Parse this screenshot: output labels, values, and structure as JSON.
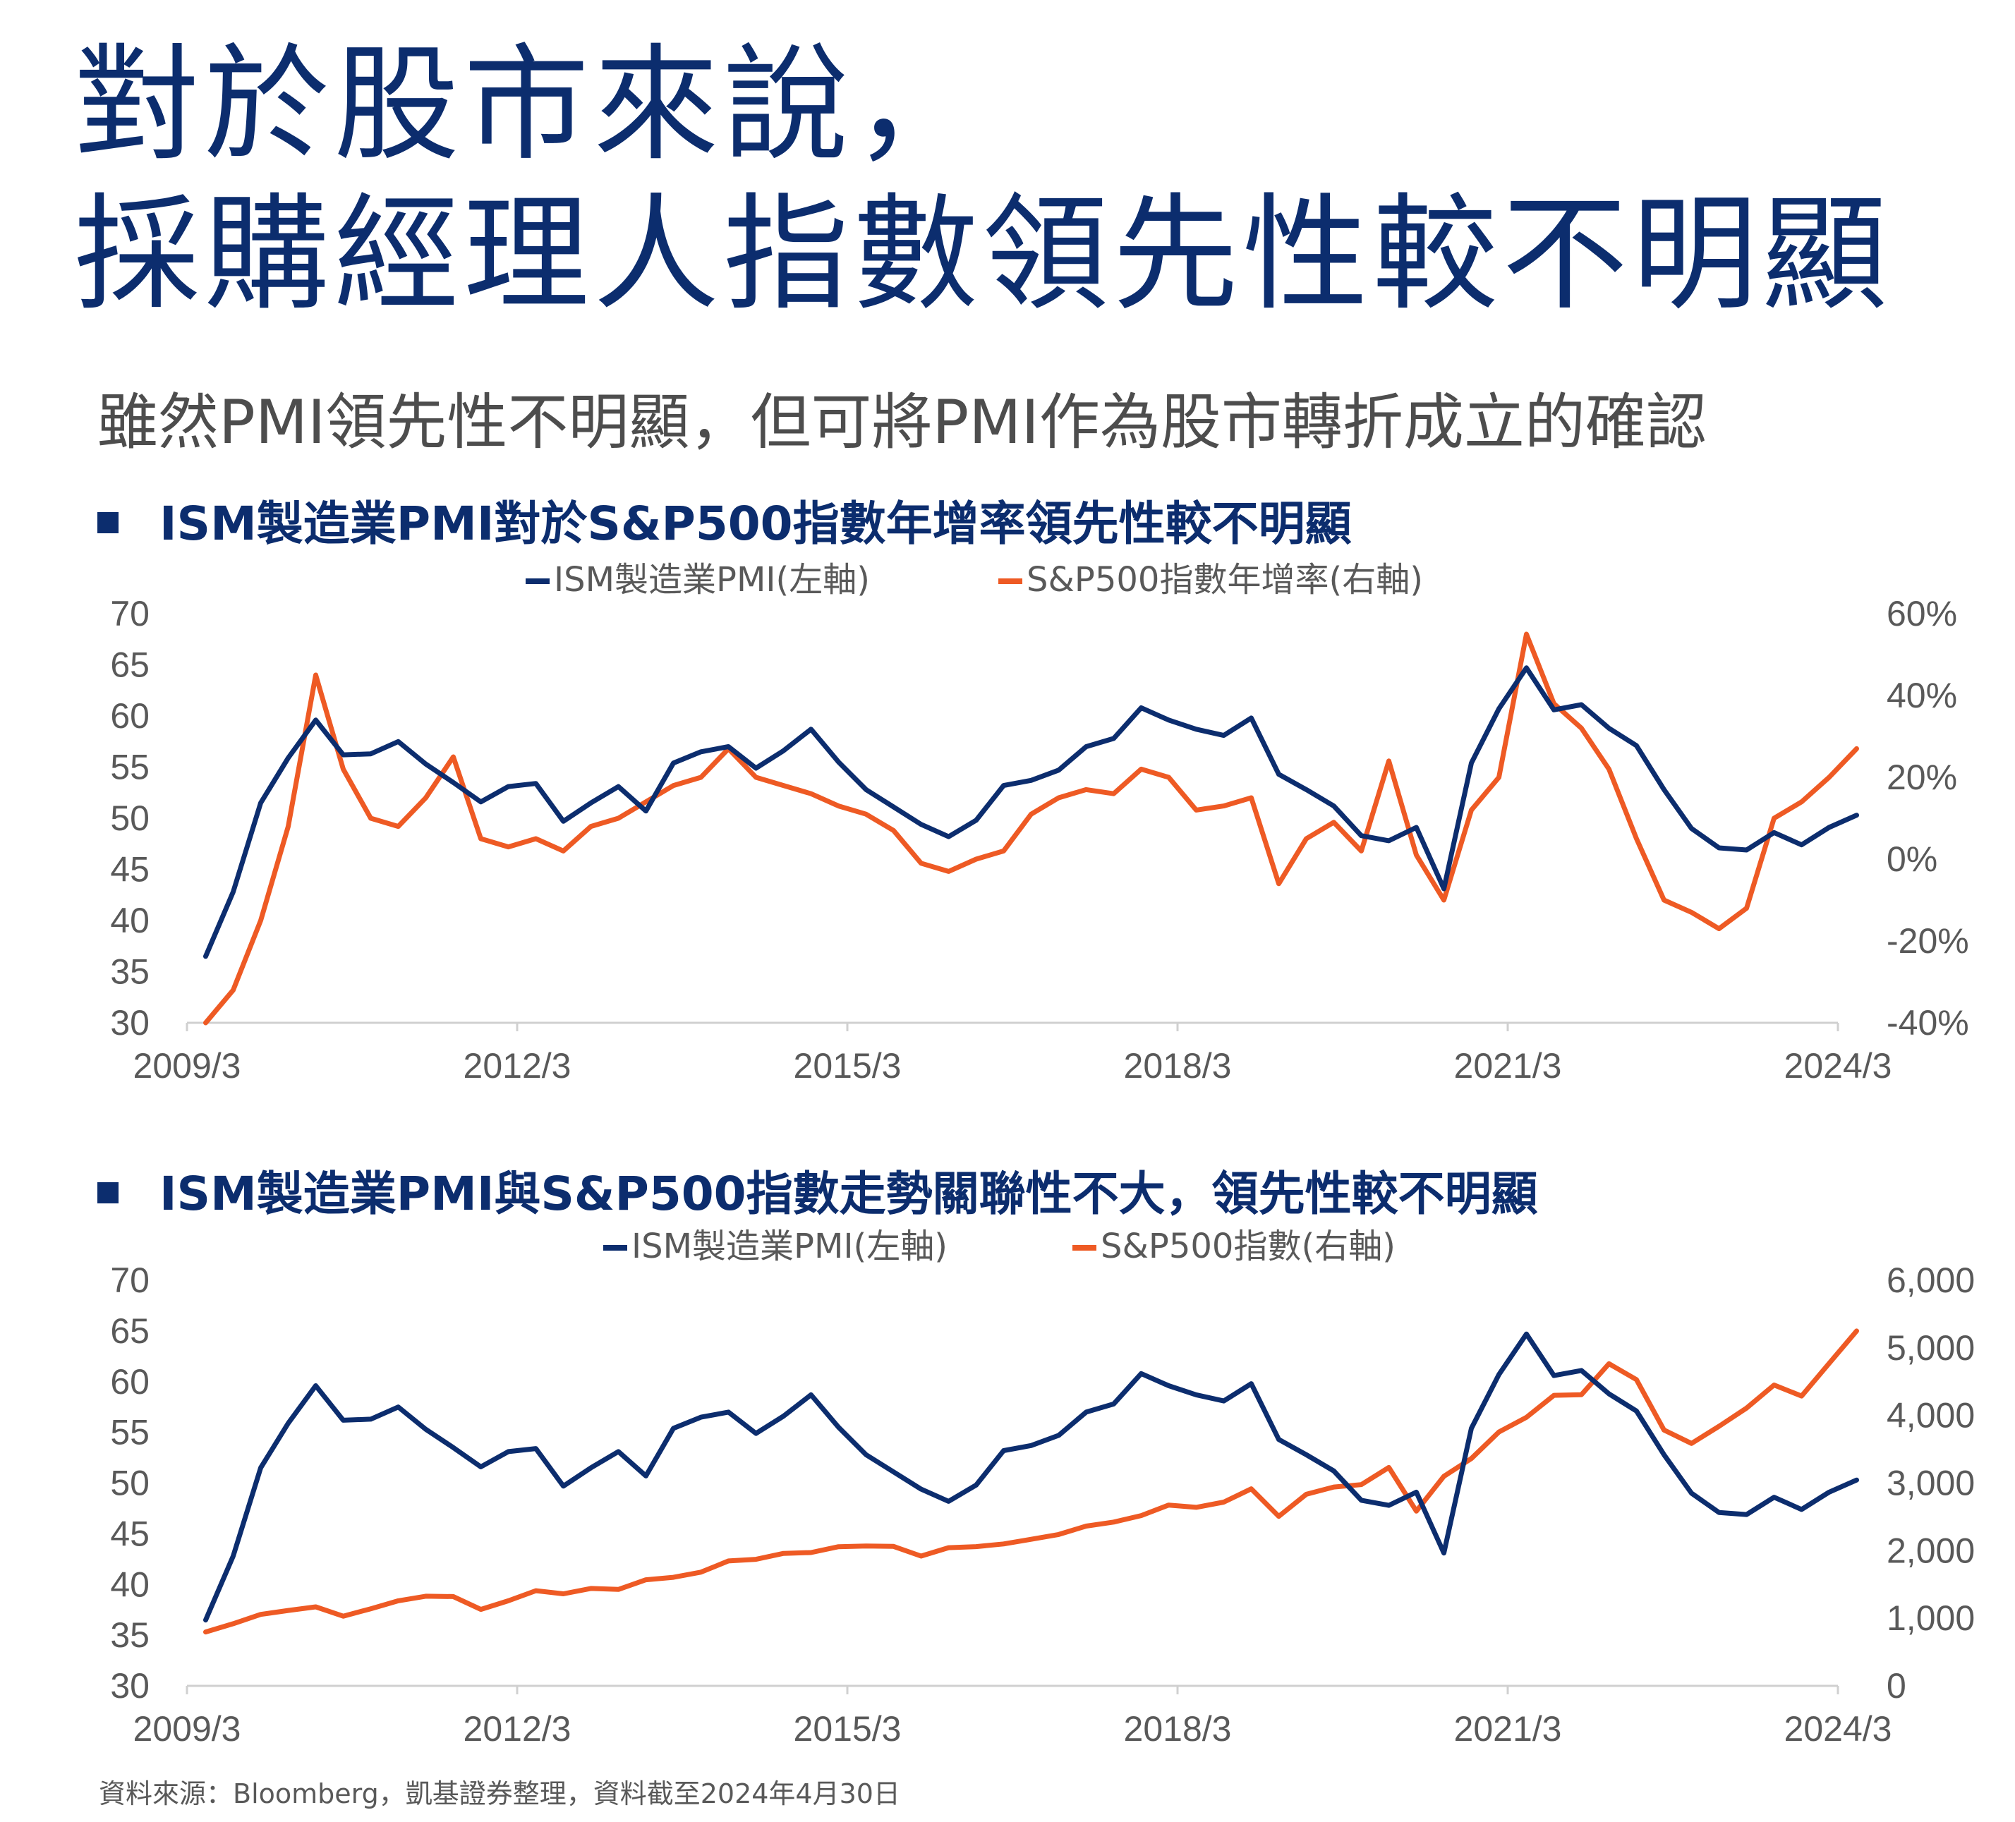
{
  "title_line1": "對於股市來說，",
  "title_line2": "採購經理人指數領先性較不明顯",
  "subtitle": "雖然PMI領先性不明顯，但可將PMI作為股市轉折成立的確認",
  "source": "資料來源：Bloomberg，凱基證券整理，資料截至2024年4月30日",
  "colors": {
    "pmi": "#0c2d6e",
    "sp": "#ee5a24",
    "title": "#0c2d6e",
    "axis_text": "#595959"
  },
  "x_labels": [
    "2009/3",
    "2012/3",
    "2015/3",
    "2018/3",
    "2021/3",
    "2024/3"
  ],
  "chart_data": [
    {
      "type": "line",
      "title": "ISM製造業PMI對於S&P500指數年增率領先性較不明顯",
      "legend": [
        "ISM製造業PMI(左軸)",
        "S&P500指數年增率(右軸)"
      ],
      "x_range": [
        "2009-03",
        "2024-03"
      ],
      "left_ticks": [
        "70",
        "65",
        "60",
        "55",
        "50",
        "45",
        "40",
        "35",
        "30"
      ],
      "right_ticks": [
        "60%",
        "40%",
        "20%",
        "0%",
        "-20%",
        "-40%"
      ],
      "ylim_left": [
        30,
        70
      ],
      "ylim_right": [
        -40,
        60
      ],
      "series": [
        {
          "name": "ISM製造業PMI(左軸)",
          "axis": "left",
          "points": [
            [
              2009.17,
              36.5
            ],
            [
              2009.42,
              42.8
            ],
            [
              2009.67,
              51.5
            ],
            [
              2009.92,
              55.9
            ],
            [
              2010.17,
              59.6
            ],
            [
              2010.42,
              56.2
            ],
            [
              2010.67,
              56.3
            ],
            [
              2010.92,
              57.5
            ],
            [
              2011.17,
              55.3
            ],
            [
              2011.42,
              53.5
            ],
            [
              2011.67,
              51.6
            ],
            [
              2011.92,
              53.1
            ],
            [
              2012.17,
              53.4
            ],
            [
              2012.42,
              49.7
            ],
            [
              2012.67,
              51.5
            ],
            [
              2012.92,
              53.1
            ],
            [
              2013.17,
              50.7
            ],
            [
              2013.42,
              55.4
            ],
            [
              2013.67,
              56.5
            ],
            [
              2013.92,
              57.0
            ],
            [
              2014.17,
              54.9
            ],
            [
              2014.42,
              56.6
            ],
            [
              2014.67,
              58.7
            ],
            [
              2014.92,
              55.5
            ],
            [
              2015.17,
              52.8
            ],
            [
              2015.42,
              51.1
            ],
            [
              2015.67,
              49.4
            ],
            [
              2015.92,
              48.2
            ],
            [
              2016.17,
              49.8
            ],
            [
              2016.42,
              53.2
            ],
            [
              2016.67,
              53.7
            ],
            [
              2016.92,
              54.7
            ],
            [
              2017.17,
              57.0
            ],
            [
              2017.42,
              57.8
            ],
            [
              2017.67,
              60.8
            ],
            [
              2017.92,
              59.6
            ],
            [
              2018.17,
              58.7
            ],
            [
              2018.42,
              58.1
            ],
            [
              2018.67,
              59.8
            ],
            [
              2018.92,
              54.3
            ],
            [
              2019.17,
              52.8
            ],
            [
              2019.42,
              51.2
            ],
            [
              2019.67,
              48.3
            ],
            [
              2019.92,
              47.8
            ],
            [
              2020.17,
              49.1
            ],
            [
              2020.42,
              43.1
            ],
            [
              2020.67,
              55.4
            ],
            [
              2020.92,
              60.7
            ],
            [
              2021.17,
              64.7
            ],
            [
              2021.42,
              60.6
            ],
            [
              2021.67,
              61.1
            ],
            [
              2021.92,
              58.8
            ],
            [
              2022.17,
              57.1
            ],
            [
              2022.42,
              52.8
            ],
            [
              2022.67,
              49.0
            ],
            [
              2022.92,
              47.1
            ],
            [
              2023.17,
              46.9
            ],
            [
              2023.42,
              48.6
            ],
            [
              2023.67,
              47.4
            ],
            [
              2023.92,
              49.1
            ],
            [
              2024.17,
              50.3
            ]
          ]
        },
        {
          "name": "S&P500指數年增率(右軸)",
          "axis": "right",
          "points": [
            [
              2009.17,
              -40
            ],
            [
              2009.42,
              -32
            ],
            [
              2009.67,
              -15
            ],
            [
              2009.92,
              8
            ],
            [
              2010.17,
              45
            ],
            [
              2010.42,
              22
            ],
            [
              2010.67,
              10
            ],
            [
              2010.92,
              8
            ],
            [
              2011.17,
              15
            ],
            [
              2011.42,
              25
            ],
            [
              2011.67,
              5
            ],
            [
              2011.92,
              3
            ],
            [
              2012.17,
              5
            ],
            [
              2012.42,
              2
            ],
            [
              2012.67,
              8
            ],
            [
              2012.92,
              10
            ],
            [
              2013.17,
              14
            ],
            [
              2013.42,
              18
            ],
            [
              2013.67,
              20
            ],
            [
              2013.92,
              27
            ],
            [
              2014.17,
              20
            ],
            [
              2014.42,
              18
            ],
            [
              2014.67,
              16
            ],
            [
              2014.92,
              13
            ],
            [
              2015.17,
              11
            ],
            [
              2015.42,
              7
            ],
            [
              2015.67,
              -1
            ],
            [
              2015.92,
              -3
            ],
            [
              2016.17,
              0
            ],
            [
              2016.42,
              2
            ],
            [
              2016.67,
              11
            ],
            [
              2016.92,
              15
            ],
            [
              2017.17,
              17
            ],
            [
              2017.42,
              16
            ],
            [
              2017.67,
              22
            ],
            [
              2017.92,
              20
            ],
            [
              2018.17,
              12
            ],
            [
              2018.42,
              13
            ],
            [
              2018.67,
              15
            ],
            [
              2018.92,
              -6
            ],
            [
              2019.17,
              5
            ],
            [
              2019.42,
              9
            ],
            [
              2019.67,
              2
            ],
            [
              2019.92,
              24
            ],
            [
              2020.17,
              1
            ],
            [
              2020.42,
              -10
            ],
            [
              2020.67,
              12
            ],
            [
              2020.92,
              20
            ],
            [
              2021.17,
              55
            ],
            [
              2021.42,
              38
            ],
            [
              2021.67,
              32
            ],
            [
              2021.92,
              22
            ],
            [
              2022.17,
              5
            ],
            [
              2022.42,
              -10
            ],
            [
              2022.67,
              -13
            ],
            [
              2022.92,
              -17
            ],
            [
              2023.17,
              -12
            ],
            [
              2023.42,
              10
            ],
            [
              2023.67,
              14
            ],
            [
              2023.92,
              20
            ],
            [
              2024.17,
              27
            ]
          ]
        }
      ]
    },
    {
      "type": "line",
      "title": "ISM製造業PMI與S&P500指數走勢關聯性不大，領先性較不明顯",
      "legend": [
        "ISM製造業PMI(左軸)",
        "S&P500指數(右軸)"
      ],
      "x_range": [
        "2009-03",
        "2024-03"
      ],
      "left_ticks": [
        "70",
        "65",
        "60",
        "55",
        "50",
        "45",
        "40",
        "35",
        "30"
      ],
      "right_ticks": [
        "6,000",
        "5,000",
        "4,000",
        "3,000",
        "2,000",
        "1,000",
        "0"
      ],
      "ylim_left": [
        30,
        70
      ],
      "ylim_right": [
        0,
        6000
      ],
      "series": [
        {
          "name": "ISM製造業PMI(左軸)",
          "axis": "left",
          "points": [
            [
              2009.17,
              36.5
            ],
            [
              2009.42,
              42.8
            ],
            [
              2009.67,
              51.5
            ],
            [
              2009.92,
              55.9
            ],
            [
              2010.17,
              59.6
            ],
            [
              2010.42,
              56.2
            ],
            [
              2010.67,
              56.3
            ],
            [
              2010.92,
              57.5
            ],
            [
              2011.17,
              55.3
            ],
            [
              2011.42,
              53.5
            ],
            [
              2011.67,
              51.6
            ],
            [
              2011.92,
              53.1
            ],
            [
              2012.17,
              53.4
            ],
            [
              2012.42,
              49.7
            ],
            [
              2012.67,
              51.5
            ],
            [
              2012.92,
              53.1
            ],
            [
              2013.17,
              50.7
            ],
            [
              2013.42,
              55.4
            ],
            [
              2013.67,
              56.5
            ],
            [
              2013.92,
              57.0
            ],
            [
              2014.17,
              54.9
            ],
            [
              2014.42,
              56.6
            ],
            [
              2014.67,
              58.7
            ],
            [
              2014.92,
              55.5
            ],
            [
              2015.17,
              52.8
            ],
            [
              2015.42,
              51.1
            ],
            [
              2015.67,
              49.4
            ],
            [
              2015.92,
              48.2
            ],
            [
              2016.17,
              49.8
            ],
            [
              2016.42,
              53.2
            ],
            [
              2016.67,
              53.7
            ],
            [
              2016.92,
              54.7
            ],
            [
              2017.17,
              57.0
            ],
            [
              2017.42,
              57.8
            ],
            [
              2017.67,
              60.8
            ],
            [
              2017.92,
              59.6
            ],
            [
              2018.17,
              58.7
            ],
            [
              2018.42,
              58.1
            ],
            [
              2018.67,
              59.8
            ],
            [
              2018.92,
              54.3
            ],
            [
              2019.17,
              52.8
            ],
            [
              2019.42,
              51.2
            ],
            [
              2019.67,
              48.3
            ],
            [
              2019.92,
              47.8
            ],
            [
              2020.17,
              49.1
            ],
            [
              2020.42,
              43.1
            ],
            [
              2020.67,
              55.4
            ],
            [
              2020.92,
              60.7
            ],
            [
              2021.17,
              64.7
            ],
            [
              2021.42,
              60.6
            ],
            [
              2021.67,
              61.1
            ],
            [
              2021.92,
              58.8
            ],
            [
              2022.17,
              57.1
            ],
            [
              2022.42,
              52.8
            ],
            [
              2022.67,
              49.0
            ],
            [
              2022.92,
              47.1
            ],
            [
              2023.17,
              46.9
            ],
            [
              2023.42,
              48.6
            ],
            [
              2023.67,
              47.4
            ],
            [
              2023.92,
              49.1
            ],
            [
              2024.17,
              50.3
            ]
          ]
        },
        {
          "name": "S&P500指數(右軸)",
          "axis": "right",
          "points": [
            [
              2009.17,
              797
            ],
            [
              2009.42,
              919
            ],
            [
              2009.67,
              1057
            ],
            [
              2009.92,
              1115
            ],
            [
              2010.17,
              1169
            ],
            [
              2010.42,
              1031
            ],
            [
              2010.67,
              1141
            ],
            [
              2010.92,
              1258
            ],
            [
              2011.17,
              1326
            ],
            [
              2011.42,
              1321
            ],
            [
              2011.67,
              1131
            ],
            [
              2011.92,
              1258
            ],
            [
              2012.17,
              1408
            ],
            [
              2012.42,
              1362
            ],
            [
              2012.67,
              1441
            ],
            [
              2012.92,
              1426
            ],
            [
              2013.17,
              1569
            ],
            [
              2013.42,
              1606
            ],
            [
              2013.67,
              1682
            ],
            [
              2013.92,
              1848
            ],
            [
              2014.17,
              1872
            ],
            [
              2014.42,
              1960
            ],
            [
              2014.67,
              1972
            ],
            [
              2014.92,
              2059
            ],
            [
              2015.17,
              2068
            ],
            [
              2015.42,
              2063
            ],
            [
              2015.67,
              1920
            ],
            [
              2015.92,
              2044
            ],
            [
              2016.17,
              2060
            ],
            [
              2016.42,
              2099
            ],
            [
              2016.67,
              2168
            ],
            [
              2016.92,
              2239
            ],
            [
              2017.17,
              2363
            ],
            [
              2017.42,
              2423
            ],
            [
              2017.67,
              2519
            ],
            [
              2017.92,
              2674
            ],
            [
              2018.17,
              2641
            ],
            [
              2018.42,
              2718
            ],
            [
              2018.67,
              2914
            ],
            [
              2018.92,
              2507
            ],
            [
              2019.17,
              2834
            ],
            [
              2019.42,
              2942
            ],
            [
              2019.67,
              2977
            ],
            [
              2019.92,
              3231
            ],
            [
              2020.17,
              2585
            ],
            [
              2020.42,
              3100
            ],
            [
              2020.67,
              3363
            ],
            [
              2020.92,
              3756
            ],
            [
              2021.17,
              3973
            ],
            [
              2021.42,
              4298
            ],
            [
              2021.67,
              4307
            ],
            [
              2021.92,
              4766
            ],
            [
              2022.17,
              4530
            ],
            [
              2022.42,
              3785
            ],
            [
              2022.67,
              3586
            ],
            [
              2022.92,
              3840
            ],
            [
              2023.17,
              4109
            ],
            [
              2023.42,
              4450
            ],
            [
              2023.67,
              4288
            ],
            [
              2023.92,
              4770
            ],
            [
              2024.17,
              5250
            ]
          ]
        }
      ]
    }
  ]
}
